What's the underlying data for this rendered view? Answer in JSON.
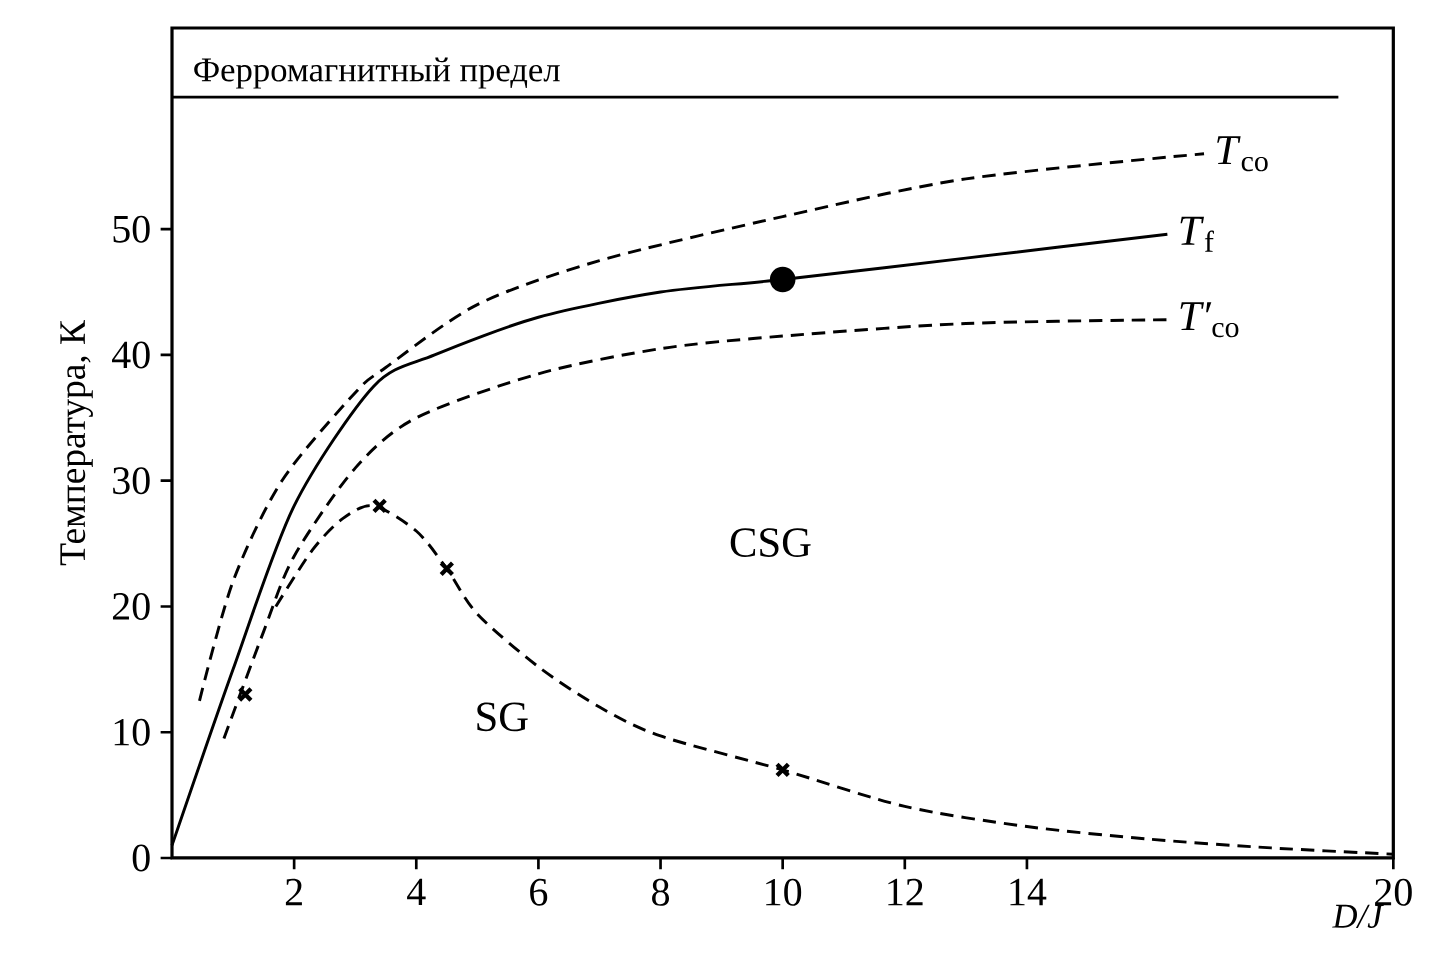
{
  "chart_data": {
    "type": "line",
    "xlabel": "*D/J*",
    "ylabel": "Температура, К",
    "xlim": [
      0,
      20
    ],
    "ylim": [
      0,
      66
    ],
    "xticks": [
      2,
      4,
      6,
      8,
      10,
      12,
      14,
      20
    ],
    "yticks": [
      0,
      10,
      20,
      30,
      40,
      50
    ],
    "ref_lines": [
      {
        "axis": "y",
        "value": 60.5,
        "label": "Ферромагнитный предел",
        "color": "#000000"
      }
    ],
    "annotations": [
      "SG",
      "CSG"
    ],
    "series": [
      {
        "name": "*T*$_{co}$",
        "color": "#000000",
        "line_style": "dashed",
        "marker": "none",
        "x": [
          0.45,
          1,
          1.8,
          3,
          3.5,
          5,
          7,
          10,
          13,
          16.9
        ],
        "values": [
          12.5,
          22,
          30,
          37,
          39,
          44,
          47.5,
          51,
          54,
          56
        ]
      },
      {
        "name": "*T*$_{f}$",
        "color": "#000000",
        "line_style": "solid",
        "marker": "none",
        "x": [
          0,
          1,
          2,
          3.3,
          4.3,
          6,
          8,
          10,
          13,
          16.3
        ],
        "values": [
          1,
          15,
          28,
          37.5,
          40,
          43,
          45,
          46,
          47.7,
          49.6
        ]
      },
      {
        "name": "*T′*$_{co}$",
        "color": "#000000",
        "line_style": "dashed",
        "marker": "none",
        "x": [
          0.85,
          1.5,
          2,
          3,
          4,
          6,
          8,
          10,
          13,
          16.3
        ],
        "values": [
          9.5,
          18,
          24,
          31,
          35,
          38.5,
          40.5,
          41.5,
          42.5,
          42.8
        ]
      },
      {
        "color": "#000000",
        "line_style": "dashed",
        "marker": "none",
        "x": [
          1.7,
          2.3,
          2.8,
          3.3,
          4,
          4.5,
          5,
          6,
          7,
          8,
          10,
          12,
          14,
          16,
          18,
          20
        ],
        "values": [
          20,
          24.5,
          27,
          28,
          26,
          23,
          19.4,
          15.2,
          12,
          9.7,
          7,
          4.1,
          2.5,
          1.5,
          0.8,
          0.3
        ]
      },
      {
        "type": "scatter",
        "color": "#000000",
        "marker": "cross",
        "x": [
          1.2,
          3.4,
          4.5,
          10
        ],
        "values": [
          13,
          28,
          23,
          7
        ]
      },
      {
        "type": "scatter",
        "color": "#000000",
        "marker": "circle",
        "x": [
          10
        ],
        "values": [
          46
        ]
      }
    ]
  }
}
